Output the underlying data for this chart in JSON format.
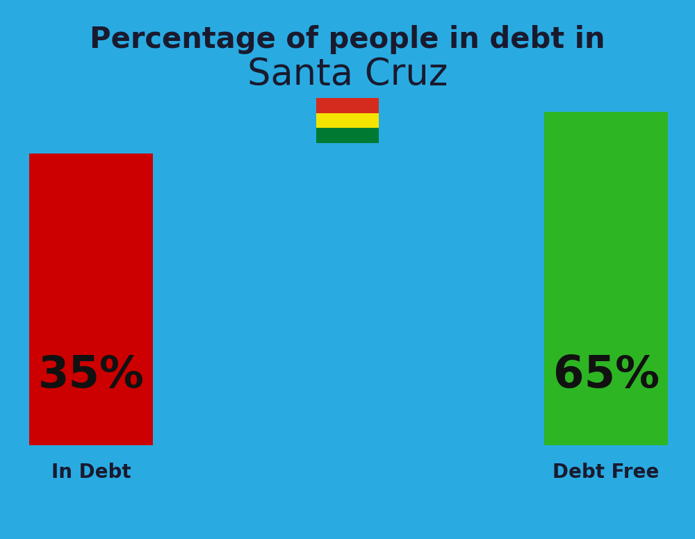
{
  "title_line1": "Percentage of people in debt in",
  "title_line2": "Santa Cruz",
  "background_color": "#29ABE2",
  "bar_left_label": "35%",
  "bar_left_color": "#CC0000",
  "bar_left_caption": "In Debt",
  "bar_right_label": "65%",
  "bar_right_color": "#2DB523",
  "bar_right_caption": "Debt Free",
  "title_line1_fontsize": 30,
  "title_line2_fontsize": 38,
  "bar_label_fontsize": 46,
  "caption_fontsize": 20,
  "text_color": "#1a1a2e"
}
